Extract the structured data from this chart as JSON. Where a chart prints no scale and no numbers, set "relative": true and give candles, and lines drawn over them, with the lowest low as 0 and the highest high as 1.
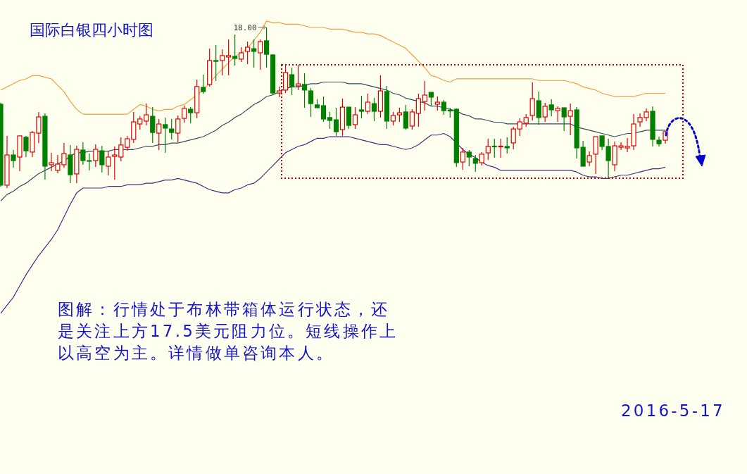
{
  "chart_data": {
    "type": "candlestick",
    "title": "国际白银四小时图",
    "relative": true,
    "categories": [
      null,
      null,
      null,
      null,
      null,
      null,
      null,
      null,
      null,
      null,
      null,
      null,
      null,
      null,
      null,
      null,
      null,
      null,
      null,
      null,
      null,
      null,
      null,
      null,
      null,
      null,
      null,
      null,
      null,
      null,
      null,
      null,
      null,
      null,
      null,
      null,
      null,
      null,
      null,
      null,
      null,
      null,
      null,
      null,
      null,
      null,
      null,
      null,
      null,
      null,
      null,
      null,
      null,
      null,
      null,
      null,
      null,
      null,
      null,
      null,
      null,
      null,
      null,
      null,
      null,
      null,
      null,
      null,
      null,
      null,
      null,
      null,
      null,
      null,
      null,
      null,
      null,
      null,
      null,
      null,
      null,
      null,
      null,
      null,
      null,
      null,
      null,
      null,
      null,
      null,
      null,
      null,
      null,
      null,
      null,
      null,
      null,
      null,
      null,
      null,
      null,
      null,
      null,
      null,
      null,
      null
    ],
    "ohlc": [
      [
        0.522,
        0.531,
        0.009,
        0.018
      ],
      [
        0.018,
        0.325,
        0,
        0.206
      ],
      [
        0.206,
        0.237,
        0.127,
        0.171
      ],
      [
        0.193,
        0.325,
        0.105,
        0.325
      ],
      [
        0.316,
        0.325,
        0.193,
        0.232
      ],
      [
        0.224,
        0.355,
        0.193,
        0.346
      ],
      [
        0.342,
        0.474,
        0.281,
        0.443
      ],
      [
        0.447,
        0.465,
        0.053,
        0.136
      ],
      [
        0.145,
        0.219,
        0.105,
        0.158
      ],
      [
        0.11,
        0.206,
        0.092,
        0.149
      ],
      [
        0.145,
        0.281,
        0.127,
        0.215
      ],
      [
        0.206,
        0.268,
        0.031,
        0.083
      ],
      [
        0.088,
        0.263,
        0.031,
        0.241
      ],
      [
        0.237,
        0.285,
        0.145,
        0.171
      ],
      [
        0.171,
        0.215,
        0.11,
        0.169
      ],
      [
        0.171,
        0.272,
        0.132,
        0.241
      ],
      [
        0.232,
        0.263,
        0.096,
        0.145
      ],
      [
        0.136,
        0.232,
        0.079,
        0.193
      ],
      [
        0.197,
        0.259,
        0.053,
        0.206
      ],
      [
        0.193,
        0.316,
        0.167,
        0.268
      ],
      [
        0.254,
        0.325,
        0.232,
        0.307
      ],
      [
        0.303,
        0.474,
        0.281,
        0.412
      ],
      [
        0.399,
        0.447,
        0.364,
        0.43
      ],
      [
        0.417,
        0.526,
        0.39,
        0.456
      ],
      [
        0.447,
        0.504,
        0.281,
        0.346
      ],
      [
        0.342,
        0.43,
        0.237,
        0.399
      ],
      [
        0.395,
        0.439,
        0.219,
        0.373
      ],
      [
        0.368,
        0.43,
        0.303,
        0.346
      ],
      [
        0.342,
        0.452,
        0.285,
        0.43
      ],
      [
        0.434,
        0.513,
        0.408,
        0.496
      ],
      [
        0.491,
        0.504,
        0.404,
        0.469
      ],
      [
        0.469,
        0.675,
        0.434,
        0.632
      ],
      [
        0.627,
        0.706,
        0.588,
        0.601
      ],
      [
        0.645,
        0.868,
        0.632,
        0.794
      ],
      [
        0.794,
        0.89,
        0.667,
        0.789
      ],
      [
        0.794,
        0.864,
        0.702,
        0.825
      ],
      [
        0.816,
        0.925,
        0.702,
        0.825
      ],
      [
        0.82,
        0.956,
        0.763,
        0.807
      ],
      [
        0.803,
        0.877,
        0.785,
        0.842
      ],
      [
        0.851,
        0.912,
        0.772,
        0.877
      ],
      [
        0.868,
        0.925,
        0.75,
        0.851
      ],
      [
        0.842,
        0.925,
        0.737,
        0.912
      ],
      [
        0.917,
        1,
        0.75,
        0.833
      ],
      [
        0.829,
        0.833,
        0.579,
        0.592
      ],
      [
        0.592,
        0.632,
        0.566,
        0.605
      ],
      [
        0.61,
        0.763,
        0.592,
        0.719
      ],
      [
        0.706,
        0.75,
        0.579,
        0.632
      ],
      [
        0.636,
        0.768,
        0.61,
        0.649
      ],
      [
        0.645,
        0.715,
        0.5,
        0.61
      ],
      [
        0.605,
        0.623,
        0.443,
        0.526
      ],
      [
        0.518,
        0.553,
        0.5,
        0.5
      ],
      [
        0.513,
        0.57,
        0.412,
        0.43
      ],
      [
        0.439,
        0.474,
        0.368,
        0.421
      ],
      [
        0.425,
        0.5,
        0.325,
        0.351
      ],
      [
        0.364,
        0.557,
        0.325,
        0.504
      ],
      [
        0.504,
        0.504,
        0.368,
        0.39
      ],
      [
        0.395,
        0.504,
        0.368,
        0.456
      ],
      [
        0.487,
        0.575,
        0.434,
        0.478
      ],
      [
        0.478,
        0.588,
        0.461,
        0.535
      ],
      [
        0.526,
        0.561,
        0.417,
        0.478
      ],
      [
        0.478,
        0.702,
        0.439,
        0.605
      ],
      [
        0.601,
        0.636,
        0.368,
        0.417
      ],
      [
        0.417,
        0.474,
        0.39,
        0.452
      ],
      [
        0.456,
        0.5,
        0.412,
        0.469
      ],
      [
        0.474,
        0.518,
        0.364,
        0.373
      ],
      [
        0.386,
        0.491,
        0.364,
        0.474
      ],
      [
        0.465,
        0.588,
        0.382,
        0.557
      ],
      [
        0.539,
        0.667,
        0.482,
        0.579
      ],
      [
        0.596,
        0.596,
        0.509,
        0.566
      ],
      [
        0.522,
        0.57,
        0.482,
        0.535
      ],
      [
        0.535,
        0.548,
        0.456,
        0.482
      ],
      [
        0.485,
        0.5,
        0.439,
        0.48
      ],
      [
        0.491,
        0.496,
        0.132,
        0.158
      ],
      [
        0.162,
        0.25,
        0.114,
        0.224
      ],
      [
        0.224,
        0.237,
        0.136,
        0.193
      ],
      [
        0.184,
        0.206,
        0.101,
        0.154
      ],
      [
        0.158,
        0.224,
        0.14,
        0.211
      ],
      [
        0.219,
        0.307,
        0.175,
        0.259
      ],
      [
        0.261,
        0.307,
        0.189,
        0.257
      ],
      [
        0.257,
        0.307,
        0.189,
        0.261
      ],
      [
        0.259,
        0.316,
        0.215,
        0.25
      ],
      [
        0.281,
        0.382,
        0.241,
        0.368
      ],
      [
        0.368,
        0.434,
        0.325,
        0.412
      ],
      [
        0.404,
        0.461,
        0.382,
        0.439
      ],
      [
        0.452,
        0.658,
        0.421,
        0.557
      ],
      [
        0.544,
        0.601,
        0.395,
        0.439
      ],
      [
        0.443,
        0.531,
        0.412,
        0.509
      ],
      [
        0.518,
        0.553,
        0.447,
        0.487
      ],
      [
        0.482,
        0.509,
        0.412,
        0.496
      ],
      [
        0.5,
        0.5,
        0.355,
        0.443
      ],
      [
        0.447,
        0.526,
        0.329,
        0.482
      ],
      [
        0.487,
        0.504,
        0.184,
        0.25
      ],
      [
        0.254,
        0.294,
        0.136,
        0.136
      ],
      [
        0.162,
        0.228,
        0.136,
        0.202
      ],
      [
        0.211,
        0.32,
        0.088,
        0.32
      ],
      [
        0.325,
        0.325,
        0.237,
        0.259
      ],
      [
        0.259,
        0.307,
        0.061,
        0.171
      ],
      [
        0.145,
        0.289,
        0.105,
        0.263
      ],
      [
        0.254,
        0.285,
        0.237,
        0.263
      ],
      [
        0.25,
        0.311,
        0.224,
        0.259
      ],
      [
        0.263,
        0.461,
        0.237,
        0.399
      ],
      [
        0.412,
        0.465,
        0.382,
        0.439
      ],
      [
        0.439,
        0.496,
        0.417,
        0.474
      ],
      [
        0.478,
        0.509,
        0.259,
        0.303
      ],
      [
        0.298,
        0.32,
        0.259,
        0.276
      ],
      [
        0.298,
        0.36,
        0.276,
        0.351
      ]
    ],
    "colors": [
      "#008000",
      "#e00000",
      "#008000",
      "#e00000",
      "#008000",
      "#e00000",
      "#e00000",
      "#008000",
      "#e00000",
      "#e00000",
      "#e00000",
      "#008000",
      "#e00000",
      "#008000",
      "#008000",
      "#e00000",
      "#008000",
      "#e00000",
      "#e00000",
      "#e00000",
      "#e00000",
      "#e00000",
      "#e00000",
      "#e00000",
      "#008000",
      "#e00000",
      "#008000",
      "#008000",
      "#e00000",
      "#e00000",
      "#008000",
      "#e00000",
      "#008000",
      "#e00000",
      "#008000",
      "#e00000",
      "#e00000",
      "#008000",
      "#e00000",
      "#e00000",
      "#008000",
      "#e00000",
      "#008000",
      "#008000",
      "#e00000",
      "#e00000",
      "#008000",
      "#e00000",
      "#008000",
      "#008000",
      "#008000",
      "#008000",
      "#008000",
      "#008000",
      "#e00000",
      "#008000",
      "#e00000",
      "#008000",
      "#e00000",
      "#008000",
      "#e00000",
      "#008000",
      "#e00000",
      "#e00000",
      "#008000",
      "#e00000",
      "#e00000",
      "#e00000",
      "#008000",
      "#e00000",
      "#008000",
      "#008000",
      "#008000",
      "#e00000",
      "#008000",
      "#008000",
      "#e00000",
      "#e00000",
      "#008000",
      "#e00000",
      "#008000",
      "#e00000",
      "#e00000",
      "#e00000",
      "#e00000",
      "#008000",
      "#e00000",
      "#008000",
      "#e00000",
      "#008000",
      "#e00000",
      "#008000",
      "#008000",
      "#e00000",
      "#e00000",
      "#008000",
      "#008000",
      "#e00000",
      "#e00000",
      "#e00000",
      "#e00000",
      "#e00000",
      "#e00000",
      "#008000",
      "#008000",
      "#e00000"
    ],
    "series": [
      {
        "type": "line",
        "color": "#f0a040",
        "values": [
          0.61,
          0.63,
          0.65,
          0.67,
          0.68,
          0.7,
          0.7,
          0.69,
          0.68,
          0.64,
          0.6,
          0.54,
          0.49,
          0.46,
          0.46,
          0.46,
          0.46,
          0.46,
          0.46,
          0.46,
          0.46,
          0.49,
          0.52,
          0.51,
          0.49,
          0.48,
          0.49,
          0.49,
          0.51,
          0.52,
          0.55,
          0.58,
          0.61,
          null,
          0.7,
          0.74,
          0.78,
          0.82,
          0.84,
          0.87,
          0.92,
          0.97,
          1.04,
          1.03,
          1.03,
          1.02,
          1.02,
          1.02,
          1.01,
          1.0,
          1.0,
          1.0,
          0.99,
          0.99,
          0.99,
          0.98,
          0.97,
          0.97,
          0.96,
          0.96,
          0.95,
          0.93,
          0.91,
          0.89,
          0.87,
          0.83,
          0.79,
          0.75,
          0.7,
          0.69,
          0.67,
          0.66,
          0.68,
          0.68,
          0.68,
          0.68,
          0.68,
          0.68,
          0.68,
          0.68,
          0.68,
          0.68,
          0.68,
          0.68,
          0.68,
          0.67,
          0.67,
          0.67,
          0.67,
          0.67,
          0.66,
          0.65,
          0.63,
          0.62,
          0.61,
          0.59,
          0.58,
          0.57,
          0.57,
          0.57,
          0.57,
          0.58,
          0.59,
          0.59,
          0.59,
          0.59
        ]
      },
      {
        "type": "line",
        "color": "#2f4f5f",
        "values": [
          -0.08,
          -0.04,
          -0.02,
          0.01,
          0.03,
          0.06,
          0.09,
          0.11,
          0.13,
          0.15,
          0.17,
          0.2,
          0.22,
          0.22,
          0.23,
          0.23,
          0.23,
          0.23,
          0.24,
          0.24,
          0.24,
          0.24,
          0.25,
          0.26,
          0.26,
          0.27,
          0.27,
          0.28,
          0.28,
          0.29,
          0.3,
          0.31,
          0.32,
          0.34,
          0.36,
          0.39,
          0.41,
          0.44,
          0.46,
          0.49,
          0.52,
          0.54,
          0.57,
          0.58,
          0.6,
          0.62,
          0.63,
          0.63,
          0.64,
          0.65,
          0.65,
          0.66,
          0.66,
          0.66,
          0.66,
          0.65,
          0.65,
          0.65,
          0.64,
          0.63,
          0.62,
          0.61,
          0.59,
          0.58,
          0.56,
          0.55,
          0.54,
          0.53,
          0.51,
          0.51,
          0.5,
          0.49,
          0.48,
          0.46,
          0.45,
          0.43,
          0.43,
          0.42,
          0.41,
          0.41,
          0.4,
          0.4,
          0.4,
          0.4,
          0.4,
          0.4,
          0.4,
          0.4,
          0.4,
          0.4,
          0.4,
          0.38,
          0.37,
          0.36,
          0.35,
          0.34,
          0.33,
          0.32,
          0.33,
          0.34,
          0.34,
          0.35,
          0.36,
          0.36,
          0.36,
          0.36
        ]
      },
      {
        "type": "line",
        "color": "#4b2a80",
        "values": [
          -0.78,
          -0.73,
          -0.68,
          -0.61,
          -0.54,
          -0.48,
          -0.42,
          -0.37,
          -0.32,
          -0.26,
          -0.18,
          -0.1,
          -0.03,
          0,
          0,
          0,
          0,
          0.01,
          0.01,
          0.01,
          0.02,
          0.02,
          0.02,
          0.03,
          0.03,
          0.04,
          0.05,
          0.05,
          0.06,
          0.05,
          0.04,
          0.03,
          0.01,
          -0.01,
          -0.02,
          -0.03,
          -0.03,
          -0.01,
          0,
          0.02,
          0.03,
          0.06,
          0.1,
          0.14,
          0.18,
          0.22,
          0.24,
          0.26,
          0.27,
          0.29,
          0.31,
          0.31,
          0.32,
          0.32,
          0.32,
          0.32,
          0.31,
          0.3,
          0.29,
          0.28,
          0.27,
          0.27,
          0.26,
          0.25,
          0.24,
          0.25,
          0.27,
          0.3,
          0.33,
          0.33,
          0.34,
          0.32,
          0.28,
          0.24,
          0.21,
          0.19,
          0.16,
          0.14,
          0.13,
          0.11,
          0.11,
          0.11,
          0.11,
          0.11,
          0.11,
          0.11,
          0.11,
          0.11,
          0.11,
          0.11,
          0.11,
          0.1,
          0.08,
          0.07,
          0.07,
          0.06,
          0.06,
          0.07,
          0.08,
          0.08,
          0.09,
          0.1,
          0.11,
          0.12,
          0.12,
          0.13
        ]
      }
    ],
    "annotations": [
      "18.00",
      "图解：行情处于布林带箱体运行状态，还是关注上方17.5美元阻力位。短线操作上以高空为主。详情做单咨询本人。",
      "2016-5-17"
    ]
  }
}
